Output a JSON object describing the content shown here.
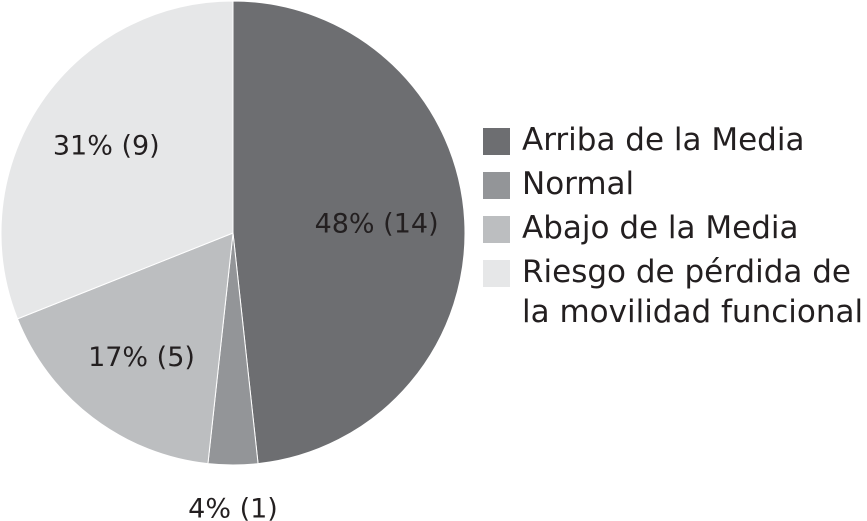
{
  "chart_data": {
    "type": "pie",
    "slices": [
      {
        "name": "Arriba de la Media",
        "value": 14,
        "percent": 48,
        "label": "48% (14)",
        "color": "#6d6e71"
      },
      {
        "name": "Normal",
        "value": 1,
        "percent": 4,
        "label": "4% (1)",
        "color": "#939598"
      },
      {
        "name": "Abajo de la Media",
        "value": 5,
        "percent": 17,
        "label": "17% (5)",
        "color": "#bcbec0"
      },
      {
        "name": "Riesgo de pérdida de la movilidad funcional",
        "value": 9,
        "percent": 31,
        "label": "31% (9)",
        "color": "#e6e7e8"
      }
    ],
    "legend": {
      "placement": "right",
      "entries": [
        {
          "label": "Arriba de la Media",
          "color": "#6d6e71"
        },
        {
          "label": "Normal",
          "color": "#939598"
        },
        {
          "label": "Abajo de la Media",
          "color": "#bcbec0"
        },
        {
          "label": "Riesgo de pérdida de la movilidad funcional",
          "color": "#e6e7e8"
        }
      ]
    }
  }
}
